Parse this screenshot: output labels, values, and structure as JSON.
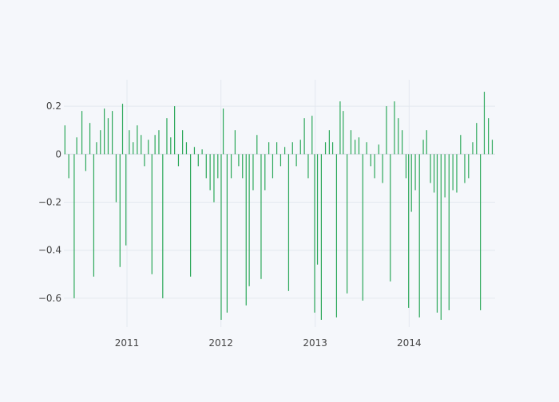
{
  "chart_data": {
    "type": "bar",
    "title": "",
    "xlabel": "",
    "ylabel": "",
    "x_range": [
      "2010-05-01",
      "2014-12-01"
    ],
    "ylim": [
      -0.72,
      0.31
    ],
    "x_ticks": [
      {
        "date": "2011-01-01",
        "label": "2011"
      },
      {
        "date": "2012-01-01",
        "label": "2012"
      },
      {
        "date": "2013-01-01",
        "label": "2013"
      },
      {
        "date": "2014-01-01",
        "label": "2014"
      }
    ],
    "y_ticks": [
      {
        "value": 0.2,
        "label": "0.2"
      },
      {
        "value": 0,
        "label": "0"
      },
      {
        "value": -0.2,
        "label": "−0.2"
      },
      {
        "value": -0.4,
        "label": "−0.4"
      },
      {
        "value": -0.6,
        "label": "−0.6"
      }
    ],
    "grid": true,
    "legend": "none",
    "series": [
      {
        "color": "#2ca85a",
        "x": [
          "2010-05-05",
          "2010-05-20",
          "2010-06-10",
          "2010-06-20",
          "2010-07-10",
          "2010-07-25",
          "2010-08-10",
          "2010-08-25",
          "2010-09-05",
          "2010-09-20",
          "2010-10-05",
          "2010-10-20",
          "2010-11-05",
          "2010-11-20",
          "2010-12-05",
          "2010-12-15",
          "2010-12-28",
          "2011-01-10",
          "2011-01-25",
          "2011-02-10",
          "2011-02-25",
          "2011-03-10",
          "2011-03-25",
          "2011-04-08",
          "2011-04-20",
          "2011-05-05",
          "2011-05-20",
          "2011-06-05",
          "2011-06-20",
          "2011-07-05",
          "2011-07-20",
          "2011-08-05",
          "2011-08-20",
          "2011-09-05",
          "2011-09-20",
          "2011-10-05",
          "2011-10-20",
          "2011-11-05",
          "2011-11-20",
          "2011-12-05",
          "2011-12-20",
          "2012-01-02",
          "2012-01-10",
          "2012-01-25",
          "2012-02-10",
          "2012-02-25",
          "2012-03-10",
          "2012-03-25",
          "2012-04-08",
          "2012-04-20",
          "2012-05-05",
          "2012-05-20",
          "2012-06-05",
          "2012-06-20",
          "2012-07-05",
          "2012-07-20",
          "2012-08-05",
          "2012-08-20",
          "2012-09-05",
          "2012-09-20",
          "2012-10-05",
          "2012-10-20",
          "2012-11-05",
          "2012-11-20",
          "2012-12-05",
          "2012-12-20",
          "2012-12-30",
          "2013-01-10",
          "2013-01-25",
          "2013-02-10",
          "2013-02-25",
          "2013-03-10",
          "2013-03-25",
          "2013-04-08",
          "2013-04-20",
          "2013-05-05",
          "2013-05-20",
          "2013-06-05",
          "2013-06-20",
          "2013-07-05",
          "2013-07-20",
          "2013-08-05",
          "2013-08-20",
          "2013-09-05",
          "2013-09-20",
          "2013-10-05",
          "2013-10-20",
          "2013-11-05",
          "2013-11-20",
          "2013-12-05",
          "2013-12-20",
          "2013-12-30",
          "2014-01-10",
          "2014-01-25",
          "2014-02-10",
          "2014-02-25",
          "2014-03-10",
          "2014-03-25",
          "2014-04-08",
          "2014-04-20",
          "2014-05-05",
          "2014-05-20",
          "2014-06-05",
          "2014-06-20",
          "2014-07-05",
          "2014-07-20",
          "2014-08-05",
          "2014-08-20",
          "2014-09-05",
          "2014-09-20",
          "2014-10-05",
          "2014-10-20",
          "2014-11-05",
          "2014-11-20"
        ],
        "values": [
          0.12,
          -0.1,
          -0.6,
          0.07,
          0.18,
          -0.07,
          0.13,
          -0.51,
          0.05,
          0.1,
          0.19,
          0.15,
          0.18,
          -0.2,
          -0.47,
          0.21,
          -0.38,
          0.1,
          0.05,
          0.12,
          0.08,
          -0.05,
          0.06,
          -0.5,
          0.08,
          0.1,
          -0.6,
          0.15,
          0.07,
          0.2,
          -0.05,
          0.1,
          0.05,
          -0.51,
          0.03,
          -0.05,
          0.02,
          -0.1,
          -0.15,
          -0.2,
          -0.1,
          -0.69,
          0.19,
          -0.66,
          -0.1,
          0.1,
          -0.05,
          -0.1,
          -0.63,
          -0.55,
          -0.15,
          0.08,
          -0.52,
          -0.15,
          0.05,
          -0.1,
          0.05,
          -0.05,
          0.03,
          -0.57,
          0.05,
          -0.05,
          0.06,
          0.15,
          -0.1,
          0.16,
          -0.66,
          -0.46,
          -0.69,
          0.05,
          0.1,
          0.05,
          -0.68,
          0.22,
          0.18,
          -0.58,
          0.1,
          0.06,
          0.07,
          -0.61,
          0.05,
          -0.05,
          -0.1,
          0.04,
          -0.12,
          0.2,
          -0.53,
          0.22,
          0.15,
          0.1,
          -0.1,
          -0.64,
          -0.24,
          -0.15,
          -0.68,
          0.06,
          0.1,
          -0.12,
          -0.16,
          -0.66,
          -0.69,
          -0.18,
          -0.65,
          -0.15,
          -0.16,
          0.08,
          -0.12,
          -0.1,
          0.05,
          0.13,
          -0.65,
          0.26,
          0.15,
          0.06
        ]
      }
    ]
  }
}
